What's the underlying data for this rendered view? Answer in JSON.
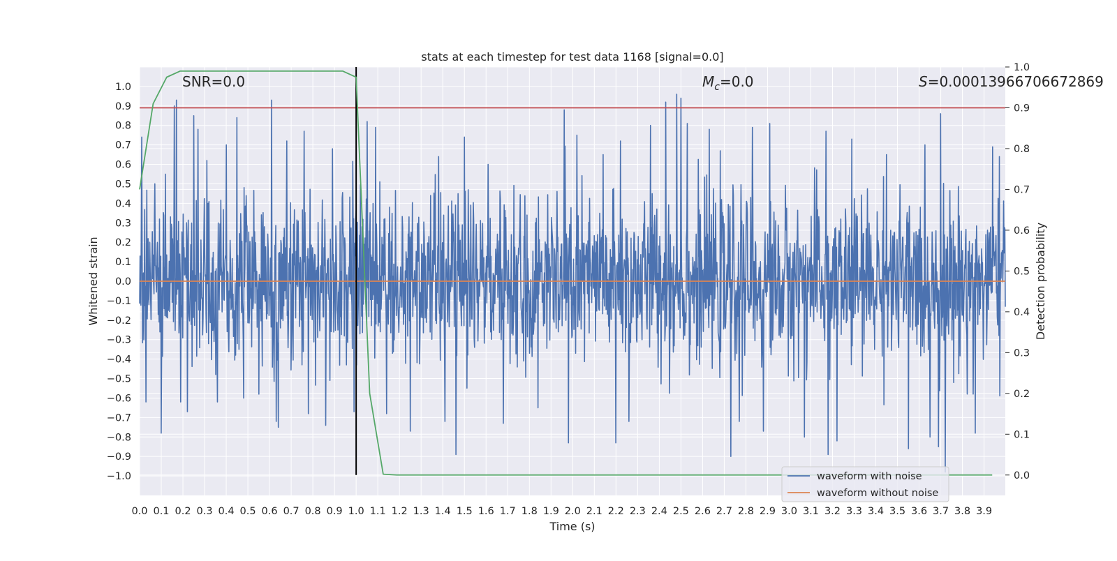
{
  "chart_data": {
    "type": "line",
    "title": "stats at each timestep for test data 1168 [signal=0.0]",
    "xlabel": "Time (s)",
    "ylabel": "Whitened strain",
    "y2label": "Detection probability",
    "xlim": [
      0.0,
      3.998
    ],
    "ylim": [
      -1.1,
      1.1
    ],
    "y2lim": [
      -0.05,
      1.0
    ],
    "x_ticks": [
      "0.0",
      "0.1",
      "0.2",
      "0.3",
      "0.4",
      "0.5",
      "0.6",
      "0.7",
      "0.8",
      "0.9",
      "1.0",
      "1.1",
      "1.2",
      "1.3",
      "1.4",
      "1.5",
      "1.6",
      "1.7",
      "1.8",
      "1.9",
      "2.0",
      "2.1",
      "2.2",
      "2.3",
      "2.4",
      "2.5",
      "2.6",
      "2.7",
      "2.8",
      "2.9",
      "3.0",
      "3.1",
      "3.2",
      "3.3",
      "3.4",
      "3.5",
      "3.6",
      "3.7",
      "3.8",
      "3.9"
    ],
    "y_ticks": [
      "1.0",
      "0.9",
      "0.8",
      "0.7",
      "0.6",
      "0.5",
      "0.4",
      "0.3",
      "0.2",
      "0.1",
      "0.0",
      "−0.1",
      "−0.2",
      "−0.3",
      "−0.4",
      "−0.5",
      "−0.6",
      "−0.7",
      "−0.8",
      "−0.9",
      "−1.0"
    ],
    "y2_ticks": [
      "1.0",
      "0.9",
      "0.8",
      "0.7",
      "0.6",
      "0.5",
      "0.4",
      "0.3",
      "0.2",
      "0.1",
      "0.0"
    ],
    "annotations": {
      "snr": "SNR=0.0",
      "mc_symbol": "M",
      "mc_sub": "c",
      "mc_value": "=0.0",
      "s_symbol": "S",
      "s_value": "=0.00013966706672869"
    },
    "threshold": 0.9,
    "marker_time": 1.0,
    "series": [
      {
        "name": "waveform with noise",
        "color": "#4c72b0",
        "noise_samples": 2048,
        "spikes": [
          {
            "x": 0.01,
            "y": 0.74
          },
          {
            "x": 0.03,
            "y": -0.62
          },
          {
            "x": 0.07,
            "y": 0.5
          },
          {
            "x": 0.1,
            "y": -0.78
          },
          {
            "x": 0.12,
            "y": 0.55
          },
          {
            "x": 0.16,
            "y": 0.9
          },
          {
            "x": 0.17,
            "y": 0.93
          },
          {
            "x": 0.19,
            "y": -0.62
          },
          {
            "x": 0.22,
            "y": -0.67
          },
          {
            "x": 0.25,
            "y": 0.85
          },
          {
            "x": 0.27,
            "y": 0.78
          },
          {
            "x": 0.31,
            "y": 0.62
          },
          {
            "x": 0.36,
            "y": -0.62
          },
          {
            "x": 0.4,
            "y": 0.7
          },
          {
            "x": 0.45,
            "y": 0.84
          },
          {
            "x": 0.48,
            "y": -0.6
          },
          {
            "x": 0.55,
            "y": -0.58
          },
          {
            "x": 0.61,
            "y": 0.93
          },
          {
            "x": 0.63,
            "y": -0.72
          },
          {
            "x": 0.64,
            "y": -0.75
          },
          {
            "x": 0.68,
            "y": 0.72
          },
          {
            "x": 0.76,
            "y": 0.77
          },
          {
            "x": 0.78,
            "y": -0.68
          },
          {
            "x": 0.86,
            "y": -0.74
          },
          {
            "x": 0.89,
            "y": 0.68
          },
          {
            "x": 0.99,
            "y": -0.67
          },
          {
            "x": 1.05,
            "y": 0.82
          },
          {
            "x": 1.09,
            "y": 0.79
          },
          {
            "x": 1.14,
            "y": -0.68
          },
          {
            "x": 1.25,
            "y": -0.77
          },
          {
            "x": 1.38,
            "y": 0.64
          },
          {
            "x": 1.41,
            "y": -0.72
          },
          {
            "x": 1.46,
            "y": -0.89
          },
          {
            "x": 1.5,
            "y": 0.74
          },
          {
            "x": 1.61,
            "y": 0.6
          },
          {
            "x": 1.68,
            "y": -0.73
          },
          {
            "x": 1.84,
            "y": -0.65
          },
          {
            "x": 1.96,
            "y": 0.88
          },
          {
            "x": 1.98,
            "y": -0.83
          },
          {
            "x": 2.02,
            "y": 0.75
          },
          {
            "x": 2.14,
            "y": 0.65
          },
          {
            "x": 2.2,
            "y": -0.83
          },
          {
            "x": 2.22,
            "y": 0.72
          },
          {
            "x": 2.26,
            "y": -0.72
          },
          {
            "x": 2.36,
            "y": 0.8
          },
          {
            "x": 2.43,
            "y": 0.92
          },
          {
            "x": 2.48,
            "y": 0.96
          },
          {
            "x": 2.5,
            "y": 0.94
          },
          {
            "x": 2.53,
            "y": 0.81
          },
          {
            "x": 2.63,
            "y": 0.78
          },
          {
            "x": 2.73,
            "y": -0.9
          },
          {
            "x": 2.77,
            "y": -0.72
          },
          {
            "x": 2.83,
            "y": 0.79
          },
          {
            "x": 2.88,
            "y": -0.77
          },
          {
            "x": 2.91,
            "y": 0.81
          },
          {
            "x": 3.07,
            "y": -0.8
          },
          {
            "x": 3.17,
            "y": 0.77
          },
          {
            "x": 3.18,
            "y": -0.89
          },
          {
            "x": 3.22,
            "y": -0.82
          },
          {
            "x": 3.29,
            "y": 0.73
          },
          {
            "x": 3.45,
            "y": 0.65
          },
          {
            "x": 3.55,
            "y": -0.86
          },
          {
            "x": 3.65,
            "y": -0.8
          },
          {
            "x": 3.69,
            "y": -0.85
          },
          {
            "x": 3.7,
            "y": 0.86
          },
          {
            "x": 3.72,
            "y": -0.98
          },
          {
            "x": 3.86,
            "y": -0.78
          },
          {
            "x": 3.94,
            "y": 0.69
          },
          {
            "x": 3.97,
            "y": 0.64
          }
        ]
      },
      {
        "name": "waveform without noise",
        "color": "#dd8452",
        "x": [
          0.0,
          3.998
        ],
        "y": [
          0.0,
          0.0
        ]
      },
      {
        "axis": "right",
        "color": "#55a868",
        "x": [
          0.0,
          0.0625,
          0.125,
          0.1875,
          0.25,
          0.3125,
          0.375,
          0.4375,
          0.5,
          0.5625,
          0.625,
          0.6875,
          0.75,
          0.8125,
          0.875,
          0.9375,
          1.0,
          1.0625,
          1.125,
          1.1875,
          1.25,
          1.5,
          1.75,
          2.0,
          2.25,
          2.5,
          2.75,
          3.0,
          3.25,
          3.5,
          3.75,
          3.9375
        ],
        "y": [
          0.7,
          0.91,
          0.975,
          0.99,
          0.99,
          0.99,
          0.99,
          0.99,
          0.99,
          0.99,
          0.99,
          0.99,
          0.99,
          0.99,
          0.99,
          0.99,
          0.975,
          0.2,
          0.002,
          0.0,
          0.0,
          0.0,
          0.0,
          0.0,
          0.0,
          0.0,
          0.0,
          0.0,
          0.0,
          0.0,
          0.0,
          0.0
        ]
      }
    ],
    "threshold_color": "#c44e52",
    "marker_color": "#000000",
    "grid": true,
    "legend_placement": "lower-right"
  }
}
